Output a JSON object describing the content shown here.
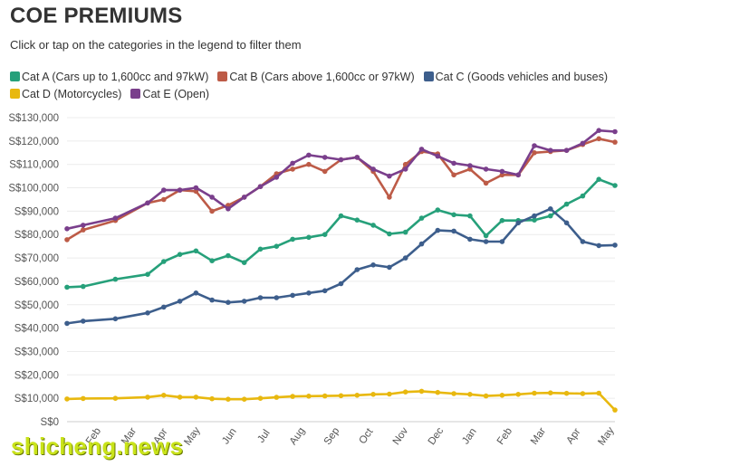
{
  "title": "COE PREMIUMS",
  "subtitle": "Click or tap on the categories in the legend to filter them",
  "watermark": "shicheng.news",
  "legend": [
    {
      "label": "Cat A (Cars up to 1,600cc and 97kW)",
      "color": "#26a07a"
    },
    {
      "label": "Cat B (Cars above 1,600cc or 97kW)",
      "color": "#bd5b47"
    },
    {
      "label": "Cat C (Goods vehicles and buses)",
      "color": "#3d5e8c"
    },
    {
      "label": "Cat D (Motorcycles)",
      "color": "#e8b80f"
    },
    {
      "label": "Cat E (Open)",
      "color": "#7a3f8c"
    }
  ],
  "chart_data": {
    "type": "line",
    "x": [
      0,
      1,
      2,
      3,
      4,
      5,
      6,
      7,
      8,
      9,
      10,
      11,
      12,
      13,
      14,
      15,
      16,
      17,
      18,
      19,
      20,
      21,
      22,
      23,
      24,
      25,
      26,
      27,
      28,
      29,
      30,
      31,
      32,
      33,
      34,
      35,
      36,
      37,
      38,
      39,
      40,
      41,
      42
    ],
    "x_ticks": [
      "Feb",
      "Mar",
      "Apr",
      "May",
      "Jun",
      "Jul",
      "Aug",
      "Sep",
      "Oct",
      "Nov",
      "Dec",
      "Jan",
      "Feb",
      "Mar",
      "Apr",
      "May"
    ],
    "y_ticks": [
      "S$0",
      "S$10,000",
      "S$20,000",
      "S$30,000",
      "S$40,000",
      "S$50,000",
      "S$60,000",
      "S$70,000",
      "S$80,000",
      "S$90,000",
      "S$100,000",
      "S$110,000",
      "S$120,000",
      "S$130,000"
    ],
    "ylim": [
      0,
      130000
    ],
    "grid": true,
    "series": [
      {
        "name": "Cat A (Cars up to 1,600cc and 97kW)",
        "color": "#26a07a",
        "values": [
          57500,
          57800,
          null,
          60900,
          null,
          63000,
          68500,
          71500,
          73000,
          68800,
          71000,
          68000,
          73800,
          75000,
          78000,
          78800,
          80000,
          88000,
          86200,
          84000,
          80300,
          81000,
          87000,
          90500,
          88500,
          88000,
          79500,
          86000,
          86000,
          86200,
          88000,
          93000,
          96500,
          103600,
          101000,
          null,
          null,
          null,
          null,
          null,
          null,
          null,
          null
        ]
      },
      {
        "name": "Cat B (Cars above 1,600cc or 97kW)",
        "color": "#bd5b47",
        "values": [
          77800,
          82000,
          null,
          86000,
          null,
          93500,
          95000,
          99000,
          98500,
          90000,
          92500,
          96000,
          100500,
          106000,
          108000,
          110000,
          107000,
          112000,
          113000,
          107000,
          96000,
          110000,
          115500,
          114500,
          105500,
          108000,
          102000,
          105500,
          105500,
          115000,
          115500,
          116000,
          118500,
          121000,
          119500,
          null,
          null,
          null,
          null,
          null,
          null,
          null,
          null
        ]
      },
      {
        "name": "Cat C (Goods vehicles and buses)",
        "color": "#3d5e8c",
        "values": [
          42000,
          43000,
          null,
          44000,
          null,
          46500,
          49000,
          51500,
          55000,
          52000,
          51000,
          51500,
          53000,
          53000,
          54000,
          55000,
          56000,
          59000,
          65000,
          67000,
          66000,
          70000,
          76000,
          81800,
          81500,
          78000,
          77000,
          77000,
          85000,
          88000,
          91000,
          85000,
          77000,
          75300,
          75500,
          null,
          null,
          null,
          null,
          null,
          null,
          null,
          null
        ]
      },
      {
        "name": "Cat D (Motorcycles)",
        "color": "#e8b80f",
        "values": [
          9700,
          9900,
          null,
          10000,
          null,
          10500,
          11300,
          10500,
          10500,
          9800,
          9600,
          9600,
          10000,
          10400,
          10800,
          10900,
          11000,
          11100,
          11300,
          11700,
          11800,
          12700,
          13000,
          12500,
          12000,
          11700,
          11000,
          11300,
          11700,
          12200,
          12300,
          12100,
          12000,
          12200,
          5000,
          null,
          null,
          null,
          null,
          null,
          null,
          null,
          null
        ]
      },
      {
        "name": "Cat E (Open)",
        "color": "#7a3f8c",
        "values": [
          82500,
          84000,
          null,
          87000,
          null,
          93500,
          99000,
          99000,
          100000,
          96000,
          91000,
          96000,
          100500,
          104500,
          110500,
          114000,
          113000,
          112000,
          113000,
          108000,
          105000,
          108000,
          116500,
          113500,
          110500,
          109500,
          108000,
          107000,
          105500,
          118000,
          116000,
          116000,
          119000,
          124500,
          124000,
          null,
          null,
          null,
          null,
          null,
          null,
          null,
          null
        ]
      }
    ]
  }
}
